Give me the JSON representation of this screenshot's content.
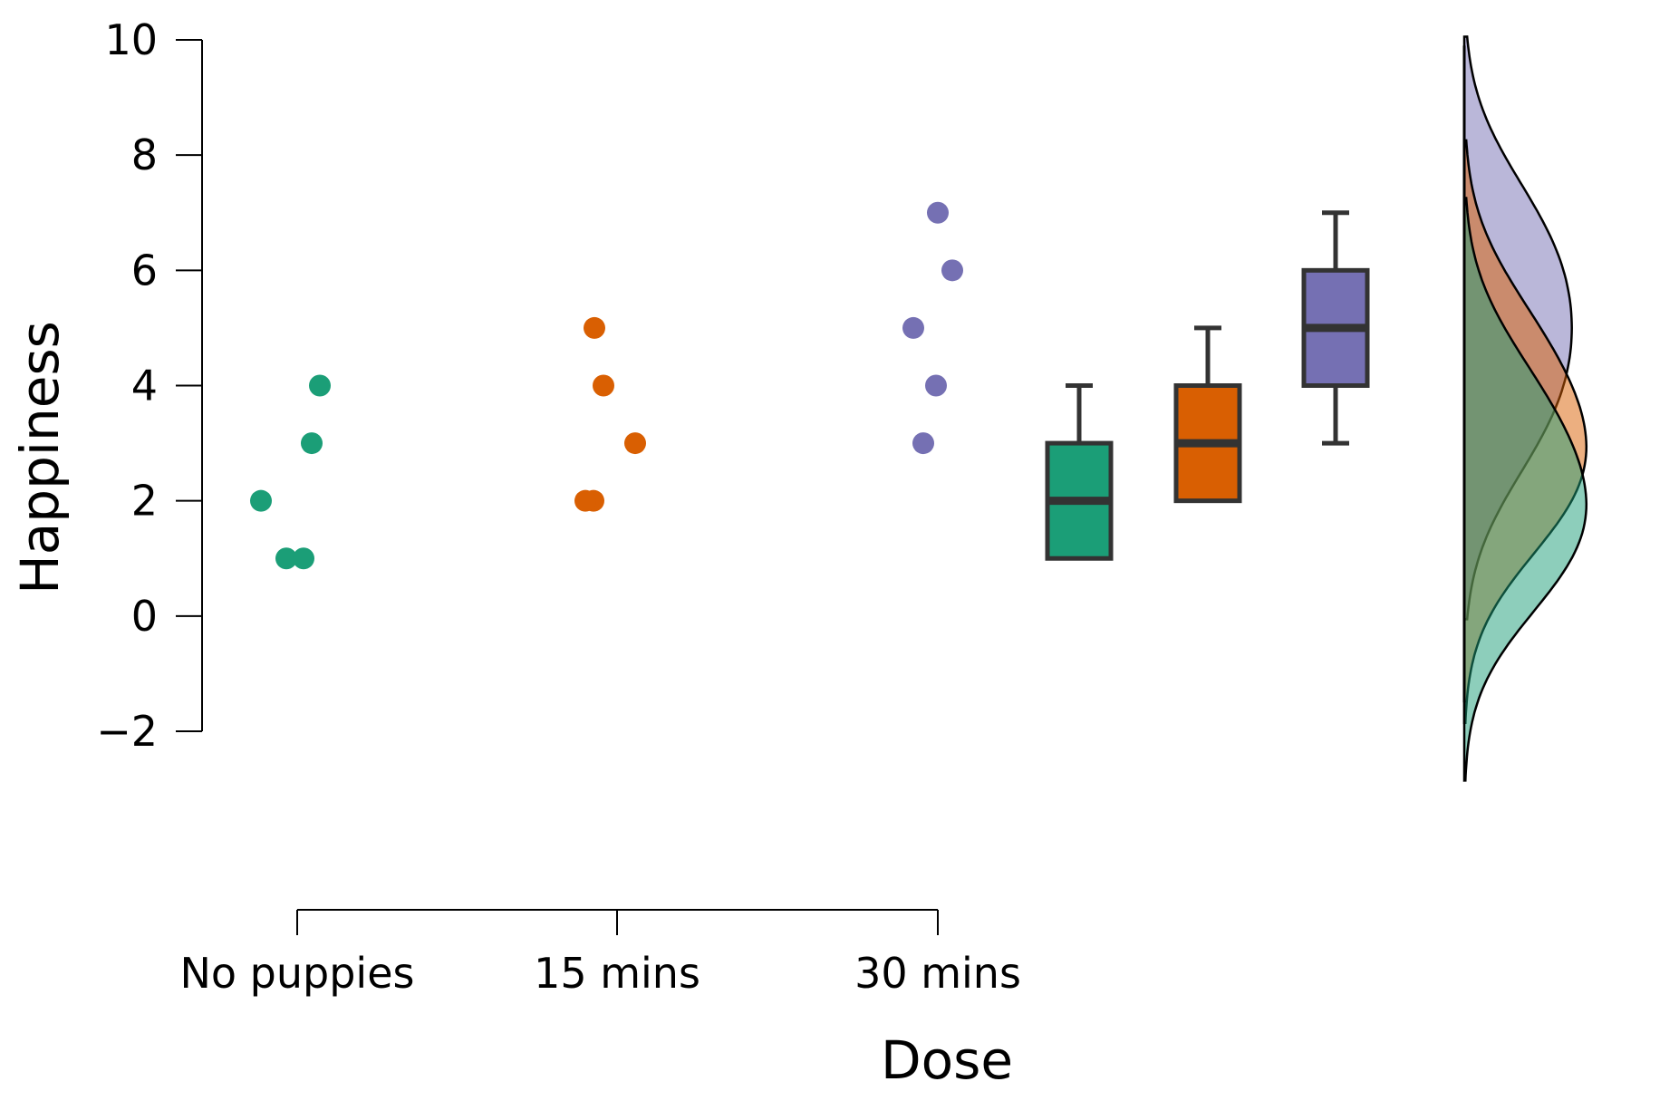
{
  "chart_data": {
    "type": "raincloud",
    "xlabel": "Dose",
    "ylabel": "Happiness",
    "ylim": [
      -2,
      10
    ],
    "yticks": [
      -2,
      0,
      2,
      4,
      6,
      8,
      10
    ],
    "ytick_labels": [
      "−2",
      "0",
      "2",
      "4",
      "6",
      "8",
      "10"
    ],
    "categories": [
      "No puppies",
      "15 mins",
      "30 mins"
    ],
    "grid": false,
    "legend": "none",
    "series": [
      {
        "category": "No puppies",
        "color": "#1b9e77",
        "points": [
          1,
          1,
          2,
          3,
          4
        ],
        "box": {
          "min": 1,
          "q1": 1,
          "median": 2,
          "q3": 3,
          "max": 4
        },
        "density_peak": 1.6
      },
      {
        "category": "15 mins",
        "color": "#d95f02",
        "points": [
          2,
          2,
          3,
          4,
          5
        ],
        "box": {
          "min": 2,
          "q1": 2,
          "median": 3,
          "q3": 4,
          "max": 5
        },
        "density_peak": 2.5
      },
      {
        "category": "30 mins",
        "color": "#7570b3",
        "points": [
          3,
          4,
          5,
          6,
          7
        ],
        "box": {
          "min": 3,
          "q1": 4,
          "median": 5,
          "q3": 6,
          "max": 7
        },
        "density_peak": 5.2
      }
    ]
  }
}
